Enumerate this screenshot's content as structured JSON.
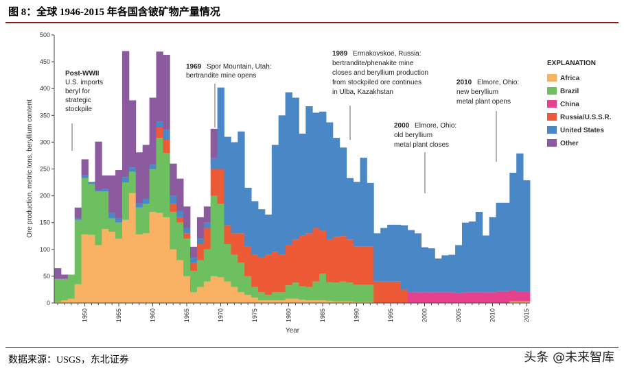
{
  "figure": {
    "title": "图 8：全球 1946-2015 年各国含铍矿物产量情况",
    "source": "数据来源：USGS，东北证券",
    "watermark": "头条 @未来智库"
  },
  "chart_data": {
    "type": "area",
    "stacked": true,
    "title": "",
    "xlabel": "Year",
    "ylabel": "Ore production, metric tons, beryllium content",
    "xlim": [
      1946,
      2015
    ],
    "ylim": [
      0,
      500
    ],
    "yticks": [
      "0",
      "50",
      "100",
      "150",
      "200",
      "250",
      "300",
      "350",
      "400",
      "450",
      "500"
    ],
    "xticks": [
      "1950",
      "1955",
      "1960",
      "1965",
      "1970",
      "1975",
      "1980",
      "1985",
      "1990",
      "1995",
      "2000",
      "2005",
      "2010",
      "2015"
    ],
    "legend_title": "EXPLANATION",
    "colors": {
      "Africa": "#f9b263",
      "Brazil": "#6dbf5f",
      "China": "#e6418c",
      "Russia/U.S.S.R.": "#ec5a36",
      "United States": "#4a87c6",
      "Other": "#8b5a9f"
    },
    "years": [
      1946,
      1947,
      1948,
      1949,
      1950,
      1951,
      1952,
      1953,
      1954,
      1955,
      1956,
      1957,
      1958,
      1959,
      1960,
      1961,
      1962,
      1963,
      1964,
      1965,
      1966,
      1967,
      1968,
      1969,
      1970,
      1971,
      1972,
      1973,
      1974,
      1975,
      1976,
      1977,
      1978,
      1979,
      1980,
      1981,
      1982,
      1983,
      1984,
      1985,
      1986,
      1987,
      1988,
      1989,
      1990,
      1991,
      1992,
      1993,
      1994,
      1995,
      1996,
      1997,
      1998,
      1999,
      2000,
      2001,
      2002,
      2003,
      2004,
      2005,
      2006,
      2007,
      2008,
      2009,
      2010,
      2011,
      2012,
      2013,
      2014,
      2015
    ],
    "series": [
      {
        "name": "Africa",
        "values": [
          2,
          5,
          8,
          35,
          128,
          127,
          108,
          138,
          133,
          120,
          155,
          205,
          128,
          130,
          170,
          168,
          160,
          100,
          80,
          50,
          20,
          30,
          40,
          50,
          48,
          40,
          30,
          20,
          15,
          10,
          5,
          5,
          5,
          5,
          8,
          8,
          6,
          5,
          5,
          5,
          4,
          3,
          3,
          3,
          2,
          2,
          2,
          0,
          0,
          0,
          0,
          0,
          0,
          0,
          0,
          0,
          0,
          0,
          0,
          0,
          0,
          0,
          0,
          0,
          0,
          0,
          0,
          3,
          3,
          3
        ]
      },
      {
        "name": "Brazil",
        "values": [
          43,
          40,
          45,
          120,
          105,
          95,
          100,
          70,
          25,
          30,
          70,
          40,
          50,
          55,
          80,
          140,
          120,
          70,
          70,
          70,
          40,
          50,
          60,
          150,
          137,
          70,
          60,
          55,
          35,
          20,
          15,
          10,
          15,
          15,
          25,
          30,
          25,
          25,
          35,
          50,
          35,
          35,
          37,
          35,
          32,
          32,
          32,
          0,
          0,
          0,
          0,
          0,
          0,
          0,
          0,
          0,
          0,
          0,
          0,
          0,
          0,
          0,
          0,
          0,
          0,
          0,
          0,
          0,
          0,
          0
        ]
      },
      {
        "name": "China",
        "values": [
          0,
          0,
          0,
          0,
          0,
          0,
          0,
          0,
          0,
          0,
          0,
          0,
          0,
          0,
          0,
          0,
          0,
          0,
          0,
          0,
          0,
          0,
          0,
          0,
          0,
          0,
          0,
          0,
          0,
          0,
          0,
          0,
          0,
          0,
          0,
          0,
          0,
          0,
          0,
          0,
          0,
          0,
          0,
          0,
          0,
          0,
          0,
          0,
          0,
          0,
          0,
          0,
          20,
          20,
          20,
          20,
          20,
          20,
          20,
          18,
          20,
          20,
          20,
          20,
          20,
          22,
          22,
          20,
          18,
          18
        ]
      },
      {
        "name": "Russia/U.S.S.R.",
        "values": [
          0,
          0,
          0,
          0,
          0,
          0,
          0,
          0,
          0,
          0,
          0,
          0,
          0,
          0,
          0,
          20,
          25,
          15,
          10,
          10,
          15,
          30,
          40,
          50,
          65,
          35,
          40,
          55,
          55,
          60,
          65,
          75,
          75,
          70,
          75,
          80,
          95,
          100,
          100,
          80,
          80,
          85,
          85,
          80,
          72,
          72,
          72,
          40,
          40,
          40,
          40,
          25,
          0,
          0,
          0,
          0,
          0,
          0,
          0,
          0,
          0,
          0,
          0,
          0,
          0,
          0,
          0,
          0,
          0,
          0
        ]
      },
      {
        "name": "United States",
        "values": [
          0,
          0,
          0,
          3,
          5,
          4,
          3,
          5,
          10,
          8,
          10,
          8,
          8,
          10,
          8,
          10,
          18,
          15,
          12,
          10,
          10,
          10,
          10,
          20,
          152,
          165,
          170,
          190,
          110,
          100,
          90,
          75,
          200,
          260,
          285,
          265,
          190,
          237,
          215,
          222,
          218,
          185,
          165,
          115,
          120,
          165,
          118,
          90,
          100,
          106,
          106,
          120,
          116,
          110,
          84,
          82,
          63,
          69,
          70,
          90,
          130,
          132,
          150,
          106,
          140,
          165,
          165,
          220,
          258,
          208
        ]
      },
      {
        "name": "Other",
        "values": [
          20,
          8,
          0,
          20,
          30,
          0,
          90,
          25,
          70,
          90,
          235,
          125,
          95,
          100,
          125,
          131,
          140,
          60,
          60,
          40,
          20,
          40,
          30,
          55,
          0,
          0,
          0,
          0,
          0,
          0,
          0,
          0,
          0,
          0,
          0,
          0,
          0,
          0,
          0,
          0,
          0,
          0,
          0,
          0,
          0,
          0,
          0,
          0,
          0,
          0,
          0,
          0,
          0,
          0,
          0,
          0,
          0,
          0,
          0,
          0,
          0,
          0,
          0,
          0,
          0,
          0,
          0,
          0,
          0,
          0
        ]
      }
    ],
    "annotations": [
      {
        "name": "postwwii",
        "bold": "Post-WWII",
        "lines": [
          "U.S. imports",
          "beryl for",
          "strategic",
          "stockpile"
        ]
      },
      {
        "name": "1969",
        "bold": "1969",
        "lines": [
          "Spor Mountain, Utah:",
          "bertrandite mine opens"
        ]
      },
      {
        "name": "1989",
        "bold": "1989",
        "lines": [
          "Ermakovskoe, Russia:",
          "bertrandite/phenakite mine",
          "closes and beryllium production",
          "from stockpiled ore continues",
          "in Ulba, Kazakhstan"
        ]
      },
      {
        "name": "2000",
        "bold": "2000",
        "lines": [
          "Elmore, Ohio:",
          "old beryllium",
          "metal plant closes"
        ]
      },
      {
        "name": "2010",
        "bold": "2010",
        "lines": [
          "Elmore, Ohio:",
          "new beryllium",
          "metal plant opens"
        ]
      }
    ]
  }
}
